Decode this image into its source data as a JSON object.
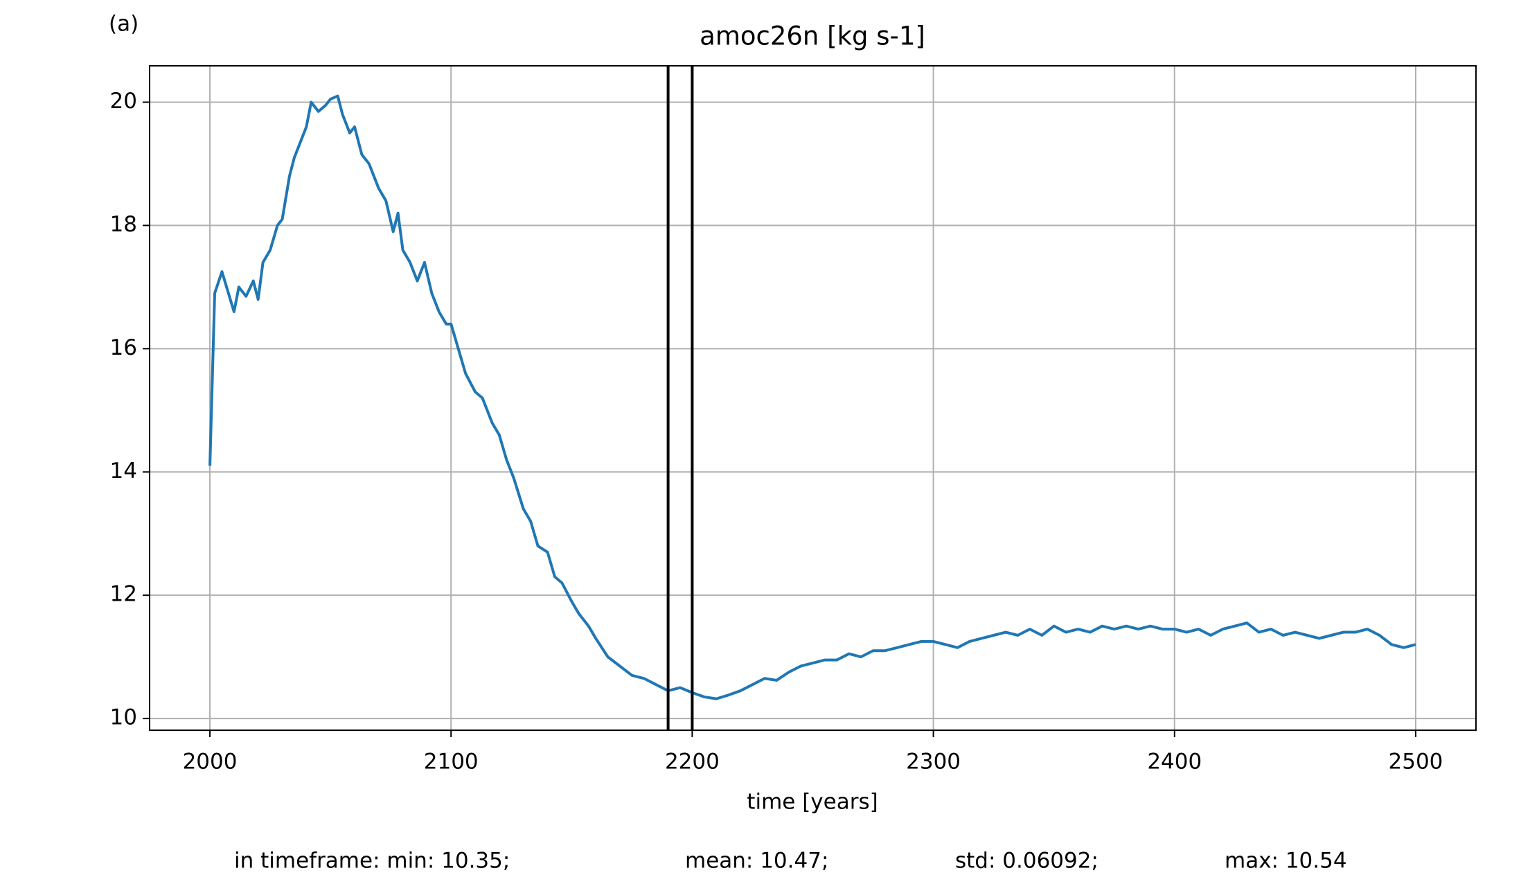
{
  "chart_data": {
    "type": "line",
    "panel_label": "(a)",
    "title": "amoc26n [kg s-1]",
    "x_label": "time [years]",
    "stats": [
      "in timeframe: min: 10.35;",
      "mean: 10.47;",
      "std: 0.06092;",
      "max: 10.54"
    ],
    "xlim": [
      1975,
      2525
    ],
    "ylim": [
      9.81,
      20.59
    ],
    "xticks": [
      2000,
      2100,
      2200,
      2300,
      2400,
      2500
    ],
    "yticks": [
      10,
      12,
      14,
      16,
      18,
      20
    ],
    "grid": true,
    "vlines": [
      2190,
      2200
    ],
    "vline_color": "#000000",
    "series": [
      {
        "color": "#1f77b4",
        "x": [
          2000,
          2002,
          2005,
          2010,
          2012,
          2015,
          2018,
          2020,
          2022,
          2025,
          2028,
          2030,
          2033,
          2035,
          2038,
          2040,
          2042,
          2045,
          2048,
          2050,
          2053,
          2055,
          2058,
          2060,
          2063,
          2066,
          2070,
          2073,
          2076,
          2078,
          2080,
          2083,
          2086,
          2089,
          2092,
          2095,
          2098,
          2100,
          2103,
          2106,
          2110,
          2113,
          2117,
          2120,
          2123,
          2126,
          2130,
          2133,
          2136,
          2140,
          2143,
          2146,
          2150,
          2153,
          2157,
          2160,
          2165,
          2170,
          2175,
          2180,
          2185,
          2190,
          2195,
          2200,
          2205,
          2210,
          2215,
          2220,
          2225,
          2230,
          2235,
          2240,
          2245,
          2250,
          2255,
          2260,
          2265,
          2270,
          2275,
          2280,
          2285,
          2290,
          2295,
          2300,
          2305,
          2310,
          2315,
          2320,
          2325,
          2330,
          2335,
          2340,
          2345,
          2350,
          2355,
          2360,
          2365,
          2370,
          2375,
          2380,
          2385,
          2390,
          2395,
          2400,
          2405,
          2410,
          2415,
          2420,
          2425,
          2430,
          2435,
          2440,
          2445,
          2450,
          2455,
          2460,
          2465,
          2470,
          2475,
          2480,
          2485,
          2490,
          2495,
          2500
        ],
        "values": [
          14.1,
          16.9,
          17.25,
          16.6,
          17.0,
          16.85,
          17.1,
          16.8,
          17.4,
          17.6,
          18.0,
          18.1,
          18.8,
          19.1,
          19.4,
          19.6,
          20.0,
          19.85,
          19.95,
          20.05,
          20.1,
          19.8,
          19.5,
          19.6,
          19.15,
          19.0,
          18.6,
          18.4,
          17.9,
          18.2,
          17.6,
          17.4,
          17.1,
          17.4,
          16.9,
          16.6,
          16.4,
          16.4,
          16.0,
          15.6,
          15.3,
          15.2,
          14.8,
          14.6,
          14.2,
          13.9,
          13.4,
          13.2,
          12.8,
          12.7,
          12.3,
          12.2,
          11.9,
          11.7,
          11.5,
          11.3,
          11.0,
          10.85,
          10.7,
          10.65,
          10.55,
          10.45,
          10.5,
          10.42,
          10.35,
          10.32,
          10.38,
          10.45,
          10.55,
          10.65,
          10.62,
          10.75,
          10.85,
          10.9,
          10.95,
          10.95,
          11.05,
          11.0,
          11.1,
          11.1,
          11.15,
          11.2,
          11.25,
          11.25,
          11.2,
          11.15,
          11.25,
          11.3,
          11.35,
          11.4,
          11.35,
          11.45,
          11.35,
          11.5,
          11.4,
          11.45,
          11.4,
          11.5,
          11.45,
          11.5,
          11.45,
          11.5,
          11.45,
          11.45,
          11.4,
          11.45,
          11.35,
          11.45,
          11.5,
          11.55,
          11.4,
          11.45,
          11.35,
          11.4,
          11.35,
          11.3,
          11.35,
          11.4,
          11.4,
          11.45,
          11.35,
          11.2,
          11.15,
          11.2
        ]
      }
    ]
  }
}
